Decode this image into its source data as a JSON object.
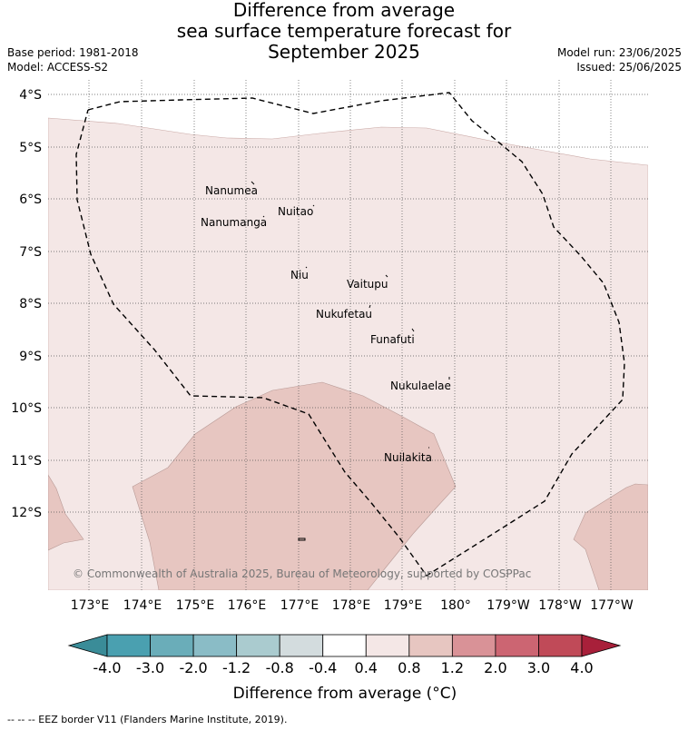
{
  "header": {
    "title_lines": [
      "Difference from average",
      "sea surface temperature forecast for",
      "September 2025"
    ],
    "base_period": "Base period: 1981-2018",
    "model": "Model: ACCESS-S2",
    "model_run": "Model run: 23/06/2025",
    "issued": "Issued: 25/06/2025"
  },
  "map": {
    "lat_labels": [
      "4°S",
      "5°S",
      "6°S",
      "7°S",
      "8°S",
      "9°S",
      "10°S",
      "11°S",
      "12°S"
    ],
    "lon_labels": [
      "173°E",
      "174°E",
      "175°E",
      "176°E",
      "177°E",
      "178°E",
      "179°E",
      "180°",
      "179°W",
      "178°W",
      "177°W"
    ],
    "islands": [
      "Nanumea",
      "Nuitao",
      "Nanumanga",
      "Niu",
      "Vaitupu",
      "Nukufetau",
      "Funafuti",
      "Nukulaelae",
      "Nuilakita"
    ],
    "copyright": "© Commonwealth of Australia 2025, Bureau of Meteorology, supported by COSPPac",
    "colors": {
      "land_bg": "#f4e7e6",
      "warm_bg": "#e7c6c1",
      "grid": "#555555",
      "eez": "#000000"
    }
  },
  "colorbar": {
    "ticks": [
      "-4.0",
      "-3.0",
      "-2.0",
      "-1.2",
      "-0.8",
      "-0.4",
      "0.4",
      "0.8",
      "1.2",
      "2.0",
      "3.0",
      "4.0"
    ],
    "segment_colors": [
      "#4aa0b0",
      "#6aadb9",
      "#8abcc6",
      "#aacbcf",
      "#d3dcde",
      "#ffffff",
      "#f4e7e6",
      "#e7c6c1",
      "#d99297",
      "#cc6572",
      "#c04a58"
    ],
    "under_color": "#3a8c98",
    "over_color": "#a8203a",
    "label": "Difference from average (°C)"
  },
  "footer": {
    "legend": "--  --  -- EEZ border V11 (Flanders Marine Institute, 2019)."
  }
}
